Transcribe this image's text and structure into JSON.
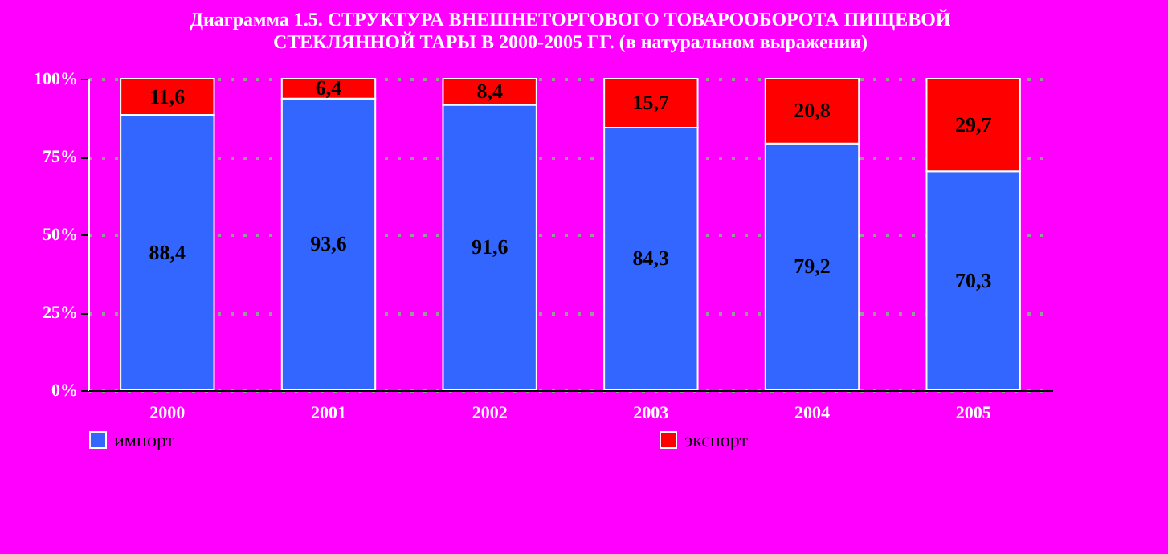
{
  "chart_data": {
    "type": "bar",
    "title": "Диаграмма 1.5. СТРУКТУРА ВНЕШНЕТОРГОВОГО ТОВАРООБОРОТА ПИЩЕВОЙ СТЕКЛЯННОЙ ТАРЫ В 2000-2005 ГГ. (в натуральном выражении)",
    "categories": [
      "2000",
      "2001",
      "2002",
      "2003",
      "2004",
      "2005"
    ],
    "stacked": true,
    "series": [
      {
        "name": "импорт",
        "color": "#3366ff",
        "values": [
          88.4,
          93.6,
          91.6,
          84.3,
          79.2,
          70.3
        ],
        "value_labels": [
          "88,4",
          "93,6",
          "91,6",
          "84,3",
          "79,2",
          "70,3"
        ]
      },
      {
        "name": "экспорт",
        "color": "#ff0000",
        "values": [
          11.6,
          6.4,
          8.4,
          15.7,
          20.8,
          29.7
        ],
        "value_labels": [
          "11,6",
          "6,4",
          "8,4",
          "15,7",
          "20,8",
          "29,7"
        ]
      }
    ],
    "ylim": [
      0,
      100
    ],
    "yticks": [
      {
        "value": 0,
        "label": "0%"
      },
      {
        "value": 25,
        "label": "25%"
      },
      {
        "value": 50,
        "label": "50%"
      },
      {
        "value": 75,
        "label": "75%"
      },
      {
        "value": 100,
        "label": "100%"
      }
    ],
    "grid": "y",
    "legend": "bottom"
  }
}
